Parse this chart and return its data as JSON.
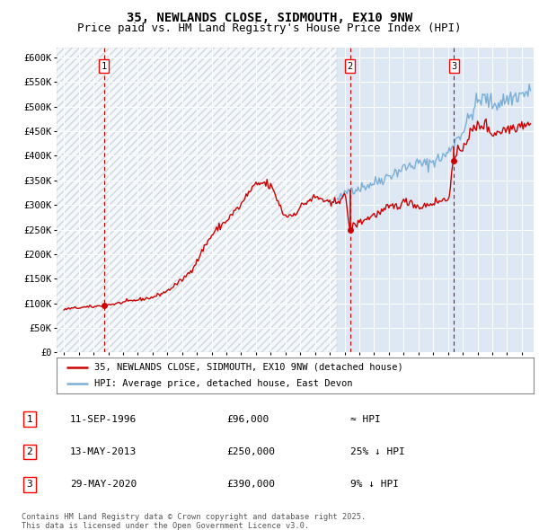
{
  "title": "35, NEWLANDS CLOSE, SIDMOUTH, EX10 9NW",
  "subtitle": "Price paid vs. HM Land Registry's House Price Index (HPI)",
  "legend_line1": "35, NEWLANDS CLOSE, SIDMOUTH, EX10 9NW (detached house)",
  "legend_line2": "HPI: Average price, detached house, East Devon",
  "footer": "Contains HM Land Registry data © Crown copyright and database right 2025.\nThis data is licensed under the Open Government Licence v3.0.",
  "transactions": [
    {
      "num": 1,
      "date": "11-SEP-1996",
      "price": 96000,
      "hpi_note": "≈ HPI",
      "year": 1996.7
    },
    {
      "num": 2,
      "date": "13-MAY-2013",
      "price": 250000,
      "hpi_note": "25% ↓ HPI",
      "year": 2013.37
    },
    {
      "num": 3,
      "date": "29-MAY-2020",
      "price": 390000,
      "hpi_note": "9% ↓ HPI",
      "year": 2020.41
    }
  ],
  "ylim": [
    0,
    620000
  ],
  "yticks": [
    0,
    50000,
    100000,
    150000,
    200000,
    250000,
    300000,
    350000,
    400000,
    450000,
    500000,
    550000,
    600000
  ],
  "ytick_labels": [
    "£0",
    "£50K",
    "£100K",
    "£150K",
    "£200K",
    "£250K",
    "£300K",
    "£350K",
    "£400K",
    "£450K",
    "£500K",
    "£550K",
    "£600K"
  ],
  "xlim_start": 1993.5,
  "xlim_end": 2025.8,
  "xticks": [
    1994,
    1995,
    1996,
    1997,
    1998,
    1999,
    2000,
    2001,
    2002,
    2003,
    2004,
    2005,
    2006,
    2007,
    2008,
    2009,
    2010,
    2011,
    2012,
    2013,
    2014,
    2015,
    2016,
    2017,
    2018,
    2019,
    2020,
    2021,
    2022,
    2023,
    2024,
    2025
  ],
  "background_color": "#dde8f4",
  "line_color_red": "#cc0000",
  "line_color_blue": "#7aaed6",
  "dot_color": "#cc0000",
  "title_fontsize": 10,
  "subtitle_fontsize": 9,
  "tick_fontsize": 7.5,
  "hpi_start_year": 2012.5
}
